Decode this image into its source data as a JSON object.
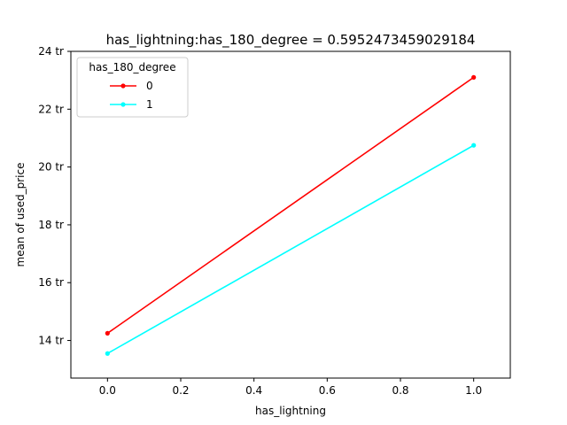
{
  "chart_data": {
    "type": "line",
    "title": "has_lightning:has_180_degree = 0.5952473459029184",
    "xlabel": "has_lightning",
    "ylabel": "mean of used_price",
    "x": [
      0.0,
      1.0
    ],
    "xlim": [
      -0.1,
      1.1
    ],
    "ylim": [
      12.7,
      24.0
    ],
    "x_ticks": [
      0.0,
      0.2,
      0.4,
      0.6,
      0.8,
      1.0
    ],
    "x_tick_labels": [
      "0.0",
      "0.2",
      "0.4",
      "0.6",
      "0.8",
      "1.0"
    ],
    "y_ticks": [
      14,
      16,
      18,
      20,
      22,
      24
    ],
    "y_tick_labels": [
      "14 tr",
      "16 tr",
      "18 tr",
      "20 tr",
      "22 tr",
      "24 tr"
    ],
    "legend": {
      "title": "has_180_degree",
      "position": "top-left"
    },
    "series": [
      {
        "name": "0",
        "color": "#ff0000",
        "values": [
          14.25,
          23.1
        ]
      },
      {
        "name": "1",
        "color": "#00ffff",
        "values": [
          13.55,
          20.75
        ]
      }
    ],
    "grid": false
  }
}
